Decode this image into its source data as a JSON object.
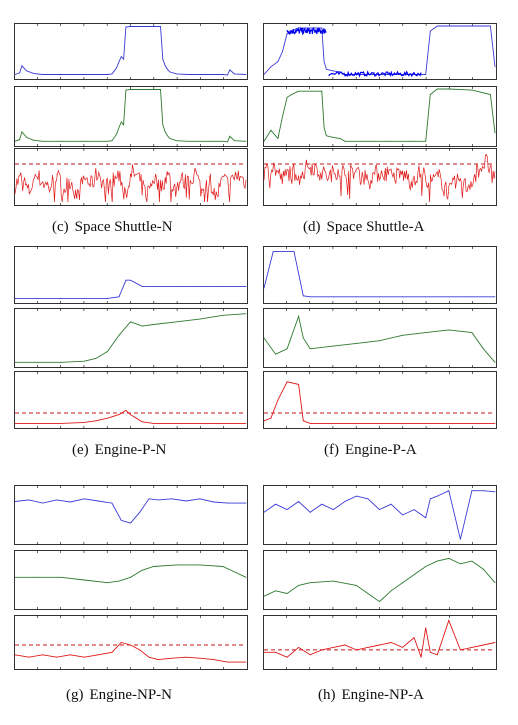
{
  "figure": {
    "colors": {
      "top": "#3a3ad8",
      "middle": "#2f7a2f",
      "bottom": "#e01818",
      "threshold": "#c01818",
      "top_dense": "#0000ee"
    },
    "captions": [
      {
        "id": "c",
        "letter": "(c)",
        "text": "Space Shuttle-N"
      },
      {
        "id": "d",
        "letter": "(d)",
        "text": "Space Shuttle-A"
      },
      {
        "id": "e",
        "letter": "(e)",
        "text": "Engine-P-N"
      },
      {
        "id": "f",
        "letter": "(f)",
        "text": "Engine-P-A"
      },
      {
        "id": "g",
        "letter": "(g)",
        "text": "Engine-NP-N"
      },
      {
        "id": "h",
        "letter": "(h)",
        "text": "Engine-NP-A"
      }
    ]
  },
  "chart_data": [
    {
      "type": "line",
      "panel": "c",
      "row": "top",
      "ylim": [
        0,
        1
      ],
      "x": [
        0,
        2,
        3,
        5,
        8,
        12,
        20,
        30,
        40,
        42,
        44,
        45,
        46,
        47,
        48,
        50,
        55,
        60,
        62,
        63,
        64,
        65,
        66,
        67,
        70,
        75,
        80,
        85,
        90,
        92,
        93,
        95,
        100
      ],
      "values": [
        0.05,
        0.08,
        0.22,
        0.12,
        0.07,
        0.05,
        0.05,
        0.05,
        0.05,
        0.06,
        0.18,
        0.3,
        0.4,
        0.35,
        0.98,
        0.99,
        0.99,
        0.99,
        0.99,
        0.99,
        0.35,
        0.22,
        0.15,
        0.1,
        0.06,
        0.05,
        0.05,
        0.05,
        0.05,
        0.04,
        0.14,
        0.06,
        0.05
      ]
    },
    {
      "type": "line",
      "panel": "c",
      "row": "middle",
      "ylim": [
        0,
        1
      ],
      "x": [
        0,
        2,
        3,
        5,
        8,
        12,
        20,
        30,
        40,
        42,
        44,
        45,
        46,
        47,
        48,
        50,
        55,
        60,
        62,
        63,
        64,
        65,
        66,
        67,
        70,
        75,
        80,
        85,
        90,
        92,
        93,
        95,
        100
      ],
      "values": [
        0.05,
        0.08,
        0.22,
        0.12,
        0.07,
        0.05,
        0.05,
        0.05,
        0.05,
        0.06,
        0.18,
        0.3,
        0.4,
        0.35,
        0.98,
        0.99,
        0.99,
        0.99,
        0.99,
        0.99,
        0.35,
        0.22,
        0.15,
        0.1,
        0.06,
        0.05,
        0.05,
        0.05,
        0.05,
        0.04,
        0.14,
        0.06,
        0.05
      ]
    },
    {
      "type": "line",
      "panel": "c",
      "row": "bottom",
      "ylim": [
        0,
        1
      ],
      "threshold": 0.75,
      "x": [
        0,
        3,
        6,
        9,
        12,
        15,
        18,
        21,
        24,
        27,
        30,
        33,
        36,
        39,
        42,
        45,
        48,
        51,
        54,
        57,
        60,
        63,
        66,
        69,
        72,
        75,
        78,
        81,
        84,
        87,
        90,
        93,
        96,
        100
      ],
      "values": [
        0.35,
        0.5,
        0.2,
        0.55,
        0.4,
        0.3,
        0.55,
        0.25,
        0.45,
        0.1,
        0.5,
        0.35,
        0.6,
        0.3,
        0.4,
        0.55,
        0.2,
        0.6,
        0.45,
        0.15,
        0.5,
        0.3,
        0.55,
        0.25,
        0.45,
        0.35,
        0.6,
        0.2,
        0.5,
        0.1,
        0.45,
        0.35,
        0.55,
        0.4
      ]
    },
    {
      "type": "line",
      "panel": "d",
      "row": "top",
      "ylim": [
        0,
        1
      ],
      "x": [
        0,
        3,
        6,
        8,
        10,
        12,
        13,
        14,
        15,
        25,
        26,
        27,
        30,
        33,
        35,
        45,
        55,
        65,
        70,
        72,
        75,
        80,
        90,
        98,
        100
      ],
      "values": [
        0.05,
        0.2,
        0.3,
        0.5,
        0.85,
        0.9,
        0.92,
        0.95,
        0.96,
        0.96,
        0.3,
        0.15,
        0.12,
        0.1,
        0.05,
        0.05,
        0.05,
        0.05,
        0.05,
        0.9,
        1.0,
        1.0,
        1.0,
        1.0,
        0.2
      ]
    },
    {
      "type": "line",
      "panel": "d",
      "row": "middle",
      "ylim": [
        0,
        1
      ],
      "x": [
        0,
        3,
        6,
        8,
        10,
        12,
        13,
        14,
        15,
        25,
        26,
        27,
        30,
        33,
        35,
        45,
        55,
        65,
        70,
        72,
        75,
        80,
        90,
        98,
        100
      ],
      "values": [
        0.05,
        0.25,
        0.1,
        0.5,
        0.85,
        0.9,
        0.92,
        0.94,
        0.96,
        0.96,
        0.3,
        0.15,
        0.12,
        0.1,
        0.05,
        0.05,
        0.05,
        0.05,
        0.05,
        0.9,
        1.0,
        1.0,
        0.98,
        0.9,
        0.2
      ]
    },
    {
      "type": "line",
      "panel": "d",
      "row": "bottom",
      "ylim": [
        0,
        1
      ],
      "threshold": 0.75,
      "x": [
        0,
        4,
        8,
        12,
        16,
        20,
        24,
        28,
        32,
        36,
        40,
        44,
        48,
        52,
        56,
        60,
        64,
        68,
        72,
        76,
        80,
        84,
        88,
        92,
        96,
        100
      ],
      "values": [
        0.6,
        0.7,
        0.45,
        0.65,
        0.55,
        0.75,
        0.6,
        0.5,
        0.65,
        0.55,
        0.6,
        0.5,
        0.55,
        0.6,
        0.5,
        0.55,
        0.45,
        0.6,
        0.4,
        0.5,
        0.2,
        0.45,
        0.3,
        0.6,
        0.8,
        0.5
      ]
    },
    {
      "type": "line",
      "panel": "e",
      "row": "top",
      "ylim": [
        0,
        1
      ],
      "x": [
        0,
        10,
        20,
        30,
        40,
        45,
        48,
        50,
        55,
        60,
        70,
        80,
        90,
        100
      ],
      "values": [
        0.05,
        0.05,
        0.05,
        0.05,
        0.05,
        0.08,
        0.4,
        0.4,
        0.28,
        0.28,
        0.28,
        0.28,
        0.28,
        0.28
      ]
    },
    {
      "type": "line",
      "panel": "e",
      "row": "middle",
      "ylim": [
        0,
        1
      ],
      "x": [
        0,
        10,
        20,
        30,
        35,
        40,
        45,
        50,
        55,
        60,
        70,
        80,
        90,
        100
      ],
      "values": [
        0.05,
        0.05,
        0.05,
        0.07,
        0.12,
        0.25,
        0.55,
        0.8,
        0.72,
        0.75,
        0.8,
        0.85,
        0.92,
        0.95
      ]
    },
    {
      "type": "line",
      "panel": "e",
      "row": "bottom",
      "ylim": [
        0,
        1
      ],
      "threshold": 0.25,
      "x": [
        0,
        10,
        20,
        30,
        35,
        40,
        45,
        48,
        50,
        55,
        60,
        70,
        80,
        90,
        100
      ],
      "values": [
        0.05,
        0.05,
        0.05,
        0.07,
        0.1,
        0.15,
        0.22,
        0.3,
        0.22,
        0.08,
        0.05,
        0.05,
        0.05,
        0.05,
        0.05
      ]
    },
    {
      "type": "line",
      "panel": "f",
      "row": "top",
      "ylim": [
        0,
        1
      ],
      "x": [
        0,
        4,
        8,
        13,
        17,
        20,
        30,
        40,
        50,
        60,
        70,
        80,
        90,
        100
      ],
      "values": [
        0.25,
        0.95,
        0.95,
        0.95,
        0.1,
        0.08,
        0.08,
        0.08,
        0.08,
        0.08,
        0.08,
        0.08,
        0.08,
        0.08
      ]
    },
    {
      "type": "line",
      "panel": "f",
      "row": "middle",
      "ylim": [
        0,
        1
      ],
      "x": [
        0,
        5,
        10,
        15,
        17,
        20,
        30,
        40,
        50,
        60,
        70,
        80,
        90,
        95,
        100
      ],
      "values": [
        0.5,
        0.2,
        0.3,
        0.9,
        0.5,
        0.3,
        0.35,
        0.4,
        0.45,
        0.55,
        0.6,
        0.65,
        0.6,
        0.3,
        0.05
      ]
    },
    {
      "type": "line",
      "panel": "f",
      "row": "bottom",
      "ylim": [
        0,
        1
      ],
      "threshold": 0.25,
      "x": [
        0,
        3,
        6,
        10,
        15,
        17,
        20,
        30,
        40,
        50,
        60,
        70,
        80,
        90,
        100
      ],
      "values": [
        0.1,
        0.15,
        0.5,
        0.85,
        0.8,
        0.1,
        0.05,
        0.05,
        0.05,
        0.05,
        0.05,
        0.05,
        0.05,
        0.05,
        0.05
      ]
    },
    {
      "type": "line",
      "panel": "g",
      "row": "top",
      "ylim": [
        0,
        1
      ],
      "x": [
        0,
        6,
        12,
        18,
        24,
        30,
        36,
        42,
        46,
        50,
        54,
        58,
        62,
        68,
        74,
        80,
        86,
        92,
        100
      ],
      "values": [
        0.75,
        0.78,
        0.72,
        0.78,
        0.74,
        0.8,
        0.76,
        0.72,
        0.4,
        0.35,
        0.55,
        0.8,
        0.78,
        0.8,
        0.76,
        0.8,
        0.74,
        0.72,
        0.72
      ]
    },
    {
      "type": "line",
      "panel": "g",
      "row": "middle",
      "ylim": [
        0,
        1
      ],
      "x": [
        0,
        10,
        20,
        30,
        40,
        45,
        50,
        55,
        60,
        70,
        80,
        90,
        95,
        100
      ],
      "values": [
        0.55,
        0.55,
        0.55,
        0.5,
        0.45,
        0.48,
        0.55,
        0.68,
        0.75,
        0.78,
        0.78,
        0.75,
        0.65,
        0.55
      ]
    },
    {
      "type": "line",
      "panel": "g",
      "row": "bottom",
      "ylim": [
        0,
        1
      ],
      "threshold": 0.45,
      "x": [
        0,
        6,
        12,
        18,
        24,
        30,
        36,
        42,
        46,
        50,
        54,
        58,
        62,
        68,
        74,
        80,
        86,
        92,
        100
      ],
      "values": [
        0.25,
        0.2,
        0.25,
        0.2,
        0.25,
        0.2,
        0.25,
        0.3,
        0.5,
        0.45,
        0.35,
        0.2,
        0.15,
        0.18,
        0.2,
        0.18,
        0.15,
        0.1,
        0.1
      ]
    },
    {
      "type": "line",
      "panel": "h",
      "row": "top",
      "ylim": [
        0,
        1
      ],
      "x": [
        0,
        5,
        10,
        15,
        20,
        25,
        30,
        35,
        40,
        45,
        50,
        55,
        60,
        65,
        70,
        72,
        75,
        80,
        85,
        90,
        95,
        100
      ],
      "values": [
        0.55,
        0.7,
        0.6,
        0.75,
        0.55,
        0.7,
        0.6,
        0.75,
        0.85,
        0.8,
        0.6,
        0.7,
        0.5,
        0.6,
        0.45,
        0.8,
        0.85,
        0.95,
        0.05,
        0.95,
        0.95,
        0.93
      ]
    },
    {
      "type": "line",
      "panel": "h",
      "row": "middle",
      "ylim": [
        0,
        1
      ],
      "x": [
        0,
        5,
        10,
        15,
        20,
        30,
        40,
        45,
        50,
        55,
        60,
        65,
        70,
        75,
        80,
        85,
        90,
        95,
        100
      ],
      "values": [
        0.2,
        0.3,
        0.25,
        0.4,
        0.45,
        0.48,
        0.4,
        0.25,
        0.1,
        0.3,
        0.45,
        0.6,
        0.75,
        0.85,
        0.9,
        0.8,
        0.85,
        0.7,
        0.45
      ]
    },
    {
      "type": "line",
      "panel": "h",
      "row": "bottom",
      "ylim": [
        0,
        1
      ],
      "threshold": 0.35,
      "x": [
        0,
        5,
        10,
        15,
        20,
        25,
        30,
        35,
        40,
        45,
        50,
        55,
        60,
        65,
        68,
        70,
        72,
        75,
        80,
        85,
        90,
        95,
        100
      ],
      "values": [
        0.3,
        0.3,
        0.2,
        0.4,
        0.25,
        0.35,
        0.4,
        0.45,
        0.35,
        0.4,
        0.45,
        0.5,
        0.4,
        0.6,
        0.2,
        0.8,
        0.3,
        0.25,
        0.95,
        0.35,
        0.4,
        0.45,
        0.5
      ]
    }
  ]
}
